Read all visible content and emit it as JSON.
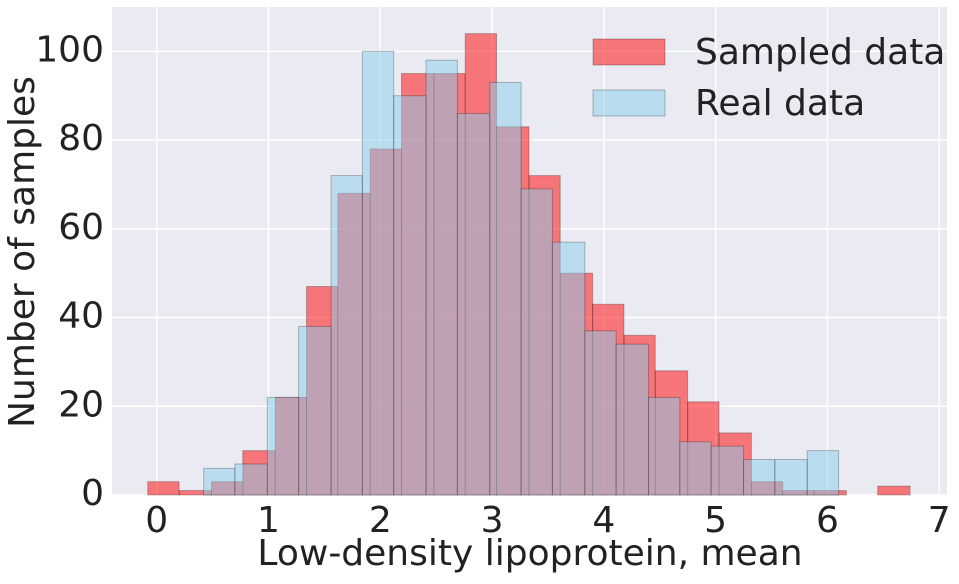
{
  "chart_data": {
    "type": "histogram",
    "xlabel": "Low-density lipoprotein, mean",
    "ylabel": "Number of samples",
    "xlim": [
      -0.4,
      7.07
    ],
    "ylim": [
      0,
      110
    ],
    "xticks": [
      0,
      1,
      2,
      3,
      4,
      5,
      6,
      7
    ],
    "yticks": [
      0,
      20,
      40,
      60,
      80,
      100
    ],
    "grid": true,
    "legend": "upper right",
    "alpha": 0.5,
    "series": [
      {
        "name": "Sampled data",
        "color": "#ff0000",
        "bins": [
          -0.08,
          0.2,
          0.49,
          0.77,
          1.06,
          1.34,
          1.62,
          1.91,
          2.19,
          2.48,
          2.76,
          3.04,
          3.33,
          3.61,
          3.9,
          4.18,
          4.46,
          4.75,
          5.03,
          5.32,
          5.6,
          5.88,
          6.17,
          6.45,
          6.74
        ],
        "values": [
          3,
          1,
          3,
          10,
          22,
          47,
          68,
          78,
          95,
          95,
          104,
          83,
          72,
          50,
          43,
          36,
          28,
          21,
          14,
          3,
          1,
          1,
          0,
          2
        ]
      },
      {
        "name": "Real data",
        "color": "#87ceeb",
        "bins": [
          0.42,
          0.7,
          0.99,
          1.27,
          1.56,
          1.84,
          2.12,
          2.41,
          2.69,
          2.98,
          3.26,
          3.54,
          3.83,
          4.11,
          4.4,
          4.68,
          4.96,
          5.25,
          5.53,
          5.82,
          6.1
        ],
        "values": [
          6,
          7,
          22,
          38,
          72,
          100,
          90,
          98,
          86,
          93,
          69,
          57,
          37,
          34,
          22,
          12,
          11,
          8,
          8,
          10
        ]
      }
    ]
  }
}
